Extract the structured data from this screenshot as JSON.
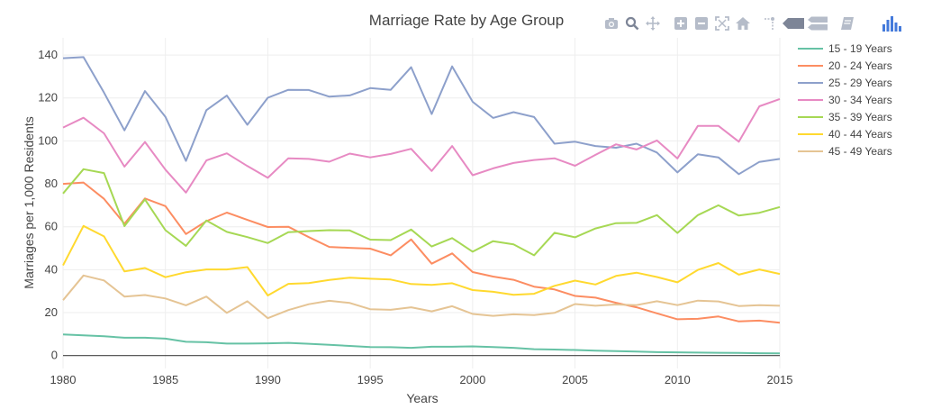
{
  "chart_data": {
    "type": "line",
    "title": "Marriage Rate by Age Group",
    "xlabel": "Years",
    "ylabel": "Marriages per 1,000 Residents",
    "xlim": [
      1980,
      2015
    ],
    "ylim": [
      -6,
      148
    ],
    "xticks": [
      1980,
      1985,
      1990,
      1995,
      2000,
      2005,
      2010,
      2015
    ],
    "yticks": [
      0,
      20,
      40,
      60,
      80,
      100,
      120,
      140
    ],
    "grid": true,
    "legend_position": "right",
    "x": [
      1980,
      1981,
      1982,
      1983,
      1984,
      1985,
      1986,
      1987,
      1988,
      1989,
      1990,
      1991,
      1992,
      1993,
      1994,
      1995,
      1996,
      1997,
      1998,
      1999,
      2000,
      2001,
      2002,
      2003,
      2004,
      2005,
      2006,
      2007,
      2008,
      2009,
      2010,
      2011,
      2012,
      2013,
      2014,
      2015
    ],
    "series": [
      {
        "name": "15 - 19 Years",
        "color": "#66c2a5",
        "values": [
          9.8,
          9.4,
          9.0,
          8.3,
          8.3,
          7.9,
          6.4,
          6.2,
          5.6,
          5.6,
          5.7,
          5.9,
          5.5,
          5.0,
          4.5,
          4.0,
          3.9,
          3.6,
          4.1,
          4.1,
          4.3,
          4.0,
          3.6,
          3.0,
          2.8,
          2.6,
          2.3,
          2.1,
          1.9,
          1.6,
          1.5,
          1.4,
          1.3,
          1.2,
          1.1,
          1.0
        ]
      },
      {
        "name": "20 - 24 Years",
        "color": "#fc8d62",
        "values": [
          80.0,
          80.6,
          73.0,
          61.4,
          73.2,
          69.6,
          56.6,
          62.6,
          66.6,
          63.2,
          59.9,
          60.0,
          55.2,
          50.6,
          50.2,
          49.8,
          46.7,
          54.1,
          42.8,
          47.6,
          38.9,
          36.8,
          35.3,
          32.1,
          30.8,
          27.8,
          27.0,
          24.6,
          22.5,
          19.7,
          16.9,
          17.1,
          18.2,
          15.9,
          16.3,
          15.3
        ]
      },
      {
        "name": "25 - 29 Years",
        "color": "#8da0cb",
        "values": [
          138.5,
          139.0,
          122.5,
          104.9,
          123.2,
          111.2,
          90.7,
          114.3,
          121.1,
          107.5,
          120.1,
          123.8,
          123.7,
          120.6,
          121.2,
          124.6,
          123.8,
          134.3,
          112.5,
          134.7,
          118.2,
          110.7,
          113.4,
          111.1,
          98.7,
          99.6,
          97.6,
          96.8,
          98.7,
          94.6,
          85.3,
          93.8,
          92.3,
          84.5,
          90.2,
          91.6
        ]
      },
      {
        "name": "30 - 34 Years",
        "color": "#e78ac3",
        "values": [
          106.2,
          110.8,
          103.5,
          88.0,
          99.5,
          86.6,
          75.9,
          90.9,
          94.2,
          88.3,
          82.8,
          91.9,
          91.6,
          90.3,
          94.1,
          92.3,
          93.9,
          96.3,
          86.0,
          97.6,
          84.0,
          87.2,
          89.7,
          91.1,
          91.9,
          88.4,
          93.5,
          98.4,
          96.0,
          100.2,
          91.8,
          107.0,
          107.0,
          99.6,
          116.1,
          119.5
        ]
      },
      {
        "name": "35 - 39 Years",
        "color": "#a6d854",
        "values": [
          75.5,
          86.8,
          85.0,
          60.3,
          72.7,
          58.4,
          51.1,
          62.9,
          57.6,
          55.2,
          52.4,
          57.5,
          58.0,
          58.4,
          58.3,
          54.0,
          53.8,
          58.7,
          50.8,
          54.7,
          48.4,
          53.3,
          51.8,
          46.7,
          57.2,
          55.1,
          59.2,
          61.7,
          61.8,
          65.4,
          57.1,
          65.4,
          70.0,
          65.2,
          66.5,
          69.2
        ]
      },
      {
        "name": "40 - 44 Years",
        "color": "#ffd92f",
        "values": [
          42.0,
          60.4,
          55.5,
          39.2,
          40.8,
          36.5,
          38.8,
          40.1,
          40.1,
          41.2,
          28.0,
          33.4,
          33.8,
          35.2,
          36.3,
          35.8,
          35.4,
          33.3,
          32.9,
          33.7,
          30.5,
          29.7,
          28.3,
          28.8,
          32.5,
          34.9,
          33.1,
          37.1,
          38.6,
          36.6,
          34.1,
          39.9,
          43.1,
          37.7,
          40.1,
          38.0
        ]
      },
      {
        "name": "45 - 49 Years",
        "color": "#e5c494",
        "values": [
          25.8,
          37.3,
          35.0,
          27.5,
          28.2,
          26.6,
          23.4,
          27.5,
          19.9,
          25.3,
          17.4,
          21.2,
          23.9,
          25.5,
          24.5,
          21.6,
          21.3,
          22.5,
          20.6,
          23.0,
          19.4,
          18.5,
          19.2,
          18.9,
          19.9,
          24.0,
          23.2,
          23.8,
          23.5,
          25.3,
          23.5,
          25.6,
          25.2,
          23.1,
          23.5,
          23.2
        ]
      }
    ]
  },
  "modebar": {
    "buttons": [
      {
        "name": "download-plot-button",
        "icon": "camera-icon"
      },
      {
        "name": "zoom-button",
        "icon": "zoom-icon"
      },
      {
        "name": "pan-button",
        "icon": "pan-icon"
      },
      {
        "name": "zoom-in-button",
        "icon": "zoom-in-icon"
      },
      {
        "name": "zoom-out-button",
        "icon": "zoom-out-icon"
      },
      {
        "name": "autoscale-button",
        "icon": "autoscale-icon"
      },
      {
        "name": "reset-axes-button",
        "icon": "home-icon"
      },
      {
        "name": "toggle-spike-lines-button",
        "icon": "spike-lines-icon"
      },
      {
        "name": "show-closest-button",
        "icon": "hover-closest-icon"
      },
      {
        "name": "compare-data-button",
        "icon": "hover-compare-icon"
      },
      {
        "name": "edit-in-chart-studio-button",
        "icon": "edit-icon"
      },
      {
        "name": "plotly-logo",
        "icon": "plotly-logo-icon"
      }
    ]
  }
}
